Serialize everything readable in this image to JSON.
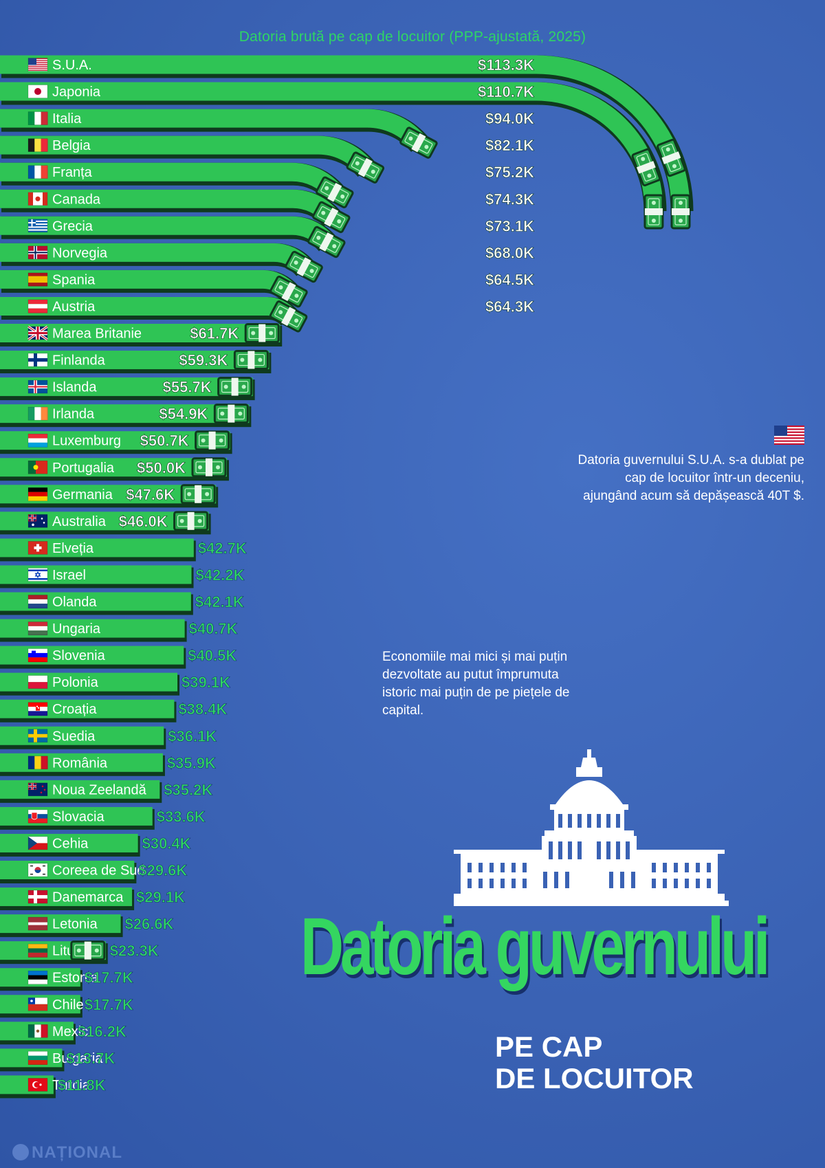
{
  "chart_data": {
    "type": "bar",
    "orientation": "horizontal",
    "subtitle": "Datoria brută pe cap de locuitor (PPP-ajustată, 2025)",
    "unit": "USD per capita",
    "categories": [
      "S.U.A.",
      "Japonia",
      "Italia",
      "Belgia",
      "Franța",
      "Canada",
      "Grecia",
      "Norvegia",
      "Spania",
      "Austria",
      "Marea Britanie",
      "Finlanda",
      "Islanda",
      "Irlanda",
      "Luxemburg",
      "Portugalia",
      "Germania",
      "Australia",
      "Elveția",
      "Israel",
      "Olanda",
      "Ungaria",
      "Slovenia",
      "Polonia",
      "Croația",
      "Suedia",
      "România",
      "Noua Zeelandă",
      "Slovacia",
      "Cehia",
      "Coreea de Sud",
      "Danemarca",
      "Letonia",
      "Lituania",
      "Estonia",
      "Chile",
      "Mexic",
      "Bulgaria",
      "Turcia"
    ],
    "values": [
      113.3,
      110.7,
      94.0,
      82.1,
      75.2,
      74.3,
      73.1,
      68.0,
      64.5,
      64.3,
      61.7,
      59.3,
      55.7,
      54.9,
      50.7,
      50.0,
      47.6,
      46.0,
      42.7,
      42.2,
      42.1,
      40.7,
      40.5,
      39.1,
      38.4,
      36.1,
      35.9,
      35.2,
      33.6,
      30.4,
      29.6,
      29.1,
      26.6,
      23.3,
      17.7,
      17.7,
      16.2,
      13.7,
      11.8
    ],
    "labels": [
      "$113.3K",
      "$110.7K",
      "$94.0K",
      "$82.1K",
      "$75.2K",
      "$74.3K",
      "$73.1K",
      "$68.0K",
      "$64.5K",
      "$64.3K",
      "$61.7K",
      "$59.3K",
      "$55.7K",
      "$54.9K",
      "$50.7K",
      "$50.0K",
      "$47.6K",
      "$46.0K",
      "$42.7K",
      "$42.2K",
      "$42.1K",
      "$40.7K",
      "$40.5K",
      "$39.1K",
      "$38.4K",
      "$36.1K",
      "$35.9K",
      "$35.2K",
      "$33.6K",
      "$30.4K",
      "$29.6K",
      "$29.1K",
      "$26.6K",
      "$23.3K",
      "$17.7K",
      "$17.7K",
      "$16.2K",
      "$13.7K",
      "$11.8K"
    ],
    "flags": [
      "us",
      "jp",
      "it",
      "be",
      "fr",
      "ca",
      "gr",
      "no",
      "es",
      "at",
      "gb",
      "fi",
      "is",
      "ie",
      "lu",
      "pt",
      "de",
      "au",
      "ch",
      "il",
      "nl",
      "hu",
      "si",
      "pl",
      "hr",
      "se",
      "ro",
      "nz",
      "sk",
      "cz",
      "kr",
      "dk",
      "lv",
      "lt",
      "ee",
      "cl",
      "mx",
      "bg",
      "tr"
    ],
    "grid": false,
    "legend": "none"
  },
  "annotations": {
    "us_debt": "Datoria guvernului S.U.A. s-a dublat pe cap de locuitor într-un deceniu, ajungând acum să depășească 40T $.",
    "small_economies": "Economiile mai mici și mai puțin dezvoltate au putut împrumuta istoric mai puțin de pe piețele de capital."
  },
  "title": {
    "main": "Datoria guvernului",
    "sub_line1": "PE CAP",
    "sub_line2": "DE LOCUITOR"
  },
  "brand": {
    "logo_text": "NAȚIONAL"
  },
  "colors": {
    "background": "#3a62b4",
    "bar": "#2fc455",
    "bar_dark": "#0f3a1e",
    "value_text": "#ffffff",
    "value_outside": "#2fd565"
  },
  "icons": {
    "bill": "dollar-bill-icon",
    "capitol": "capitol-building-icon"
  }
}
